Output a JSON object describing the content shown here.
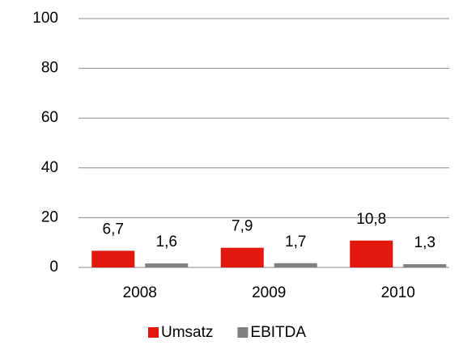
{
  "chart_data": {
    "type": "bar",
    "categories": [
      "2008",
      "2009",
      "2010"
    ],
    "series": [
      {
        "name": "Umsatz",
        "color": "#e2170d",
        "values": [
          6.7,
          7.9,
          10.8
        ],
        "value_labels": [
          "6,7",
          "7,9",
          "10,8"
        ]
      },
      {
        "name": "EBITDA",
        "color": "#808080",
        "values": [
          1.6,
          1.7,
          1.3
        ],
        "value_labels": [
          "1,6",
          "1,7",
          "1,3"
        ]
      }
    ],
    "ylim": [
      0,
      100
    ],
    "yticks": [
      0,
      20,
      40,
      60,
      80,
      100
    ],
    "grid": true,
    "legend": "bottom"
  }
}
